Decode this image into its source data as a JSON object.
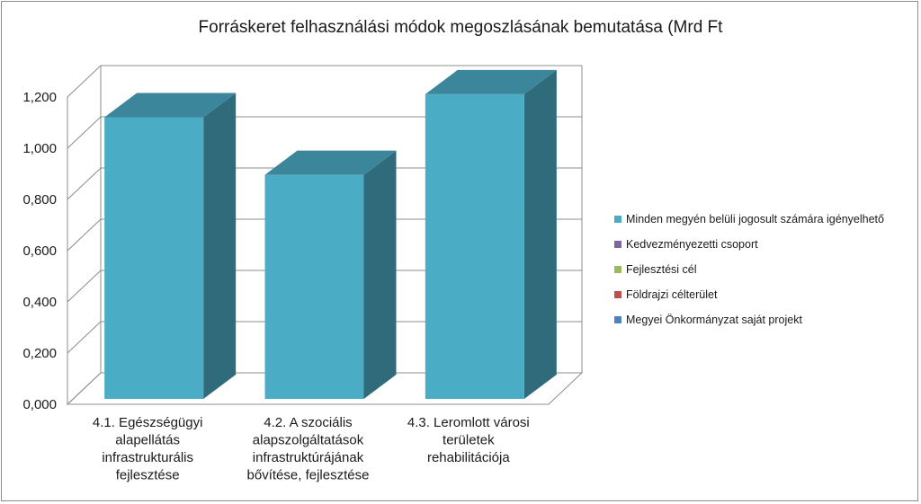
{
  "chart_data": {
    "type": "bar",
    "title": "Forráskeret felhasználási módok megoszlásának bemutatása (Mrd Ft",
    "xlabel": "",
    "ylabel": "",
    "ylim": [
      0,
      1.2
    ],
    "yticks": [
      "0,000",
      "0,200",
      "0,400",
      "0,600",
      "0,800",
      "1,000",
      "1,200"
    ],
    "categories": [
      [
        "4.1. Egészségügyi",
        "alapellátás",
        "infrastrukturális",
        "fejlesztése"
      ],
      [
        "4.2. A szociális",
        "alapszolgáltatások",
        "infrastruktúrájának",
        "bővítése, fejlesztése"
      ],
      [
        "4.3. Leromlott városi",
        "területek",
        "rehabilitációja"
      ]
    ],
    "series": [
      {
        "name": "Minden megyén belüli jogosult számára igényelhető",
        "color": "#4bacc6",
        "values": [
          1.1,
          0.875,
          1.19
        ]
      },
      {
        "name": "Kedvezményezetti csoport",
        "color": "#8064a2",
        "values": [
          0,
          0,
          0
        ]
      },
      {
        "name": "Fejlesztési cél",
        "color": "#9bbb59",
        "values": [
          0,
          0,
          0
        ]
      },
      {
        "name": "Földrajzi célterület",
        "color": "#c0504d",
        "values": [
          0,
          0,
          0
        ]
      },
      {
        "name": "Megyei Önkormányzat saját projekt",
        "color": "#4f81bd",
        "values": [
          0,
          0,
          0
        ]
      }
    ],
    "grid": true,
    "legend": "right",
    "style": "3d-column"
  }
}
